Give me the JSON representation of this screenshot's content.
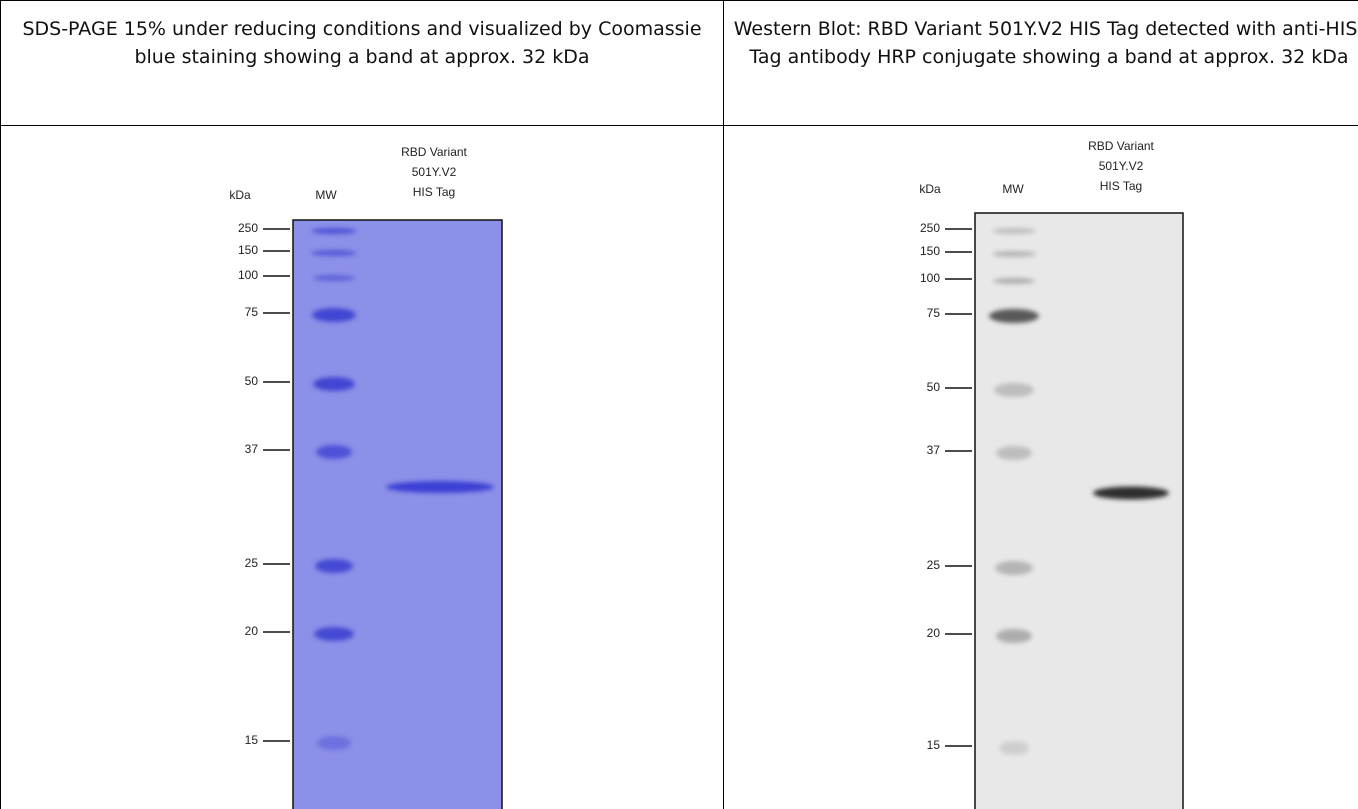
{
  "panels": [
    {
      "caption": "SDS-PAGE 15% under reducing conditions and visualized by Coomassie blue staining showing a band at approx. 32 kDa",
      "unit_label": "kDa",
      "marker_lane_label": "MW",
      "sample_lane_label": [
        "RBD Variant",
        "501Y.V2",
        "HIS Tag"
      ],
      "markers": [
        250,
        150,
        100,
        75,
        50,
        37,
        25,
        20,
        15
      ]
    },
    {
      "caption": "Western Blot: RBD Variant 501Y.V2 HIS Tag detected with anti-HIS-Tag antibody HRP conjugate showing a band at approx. 32 kDa",
      "unit_label": "kDa",
      "marker_lane_label": "MW",
      "sample_lane_label": [
        "RBD Variant",
        "501Y.V2",
        "HIS Tag"
      ],
      "markers": [
        250,
        150,
        100,
        75,
        50,
        37,
        25,
        20,
        15
      ]
    }
  ]
}
